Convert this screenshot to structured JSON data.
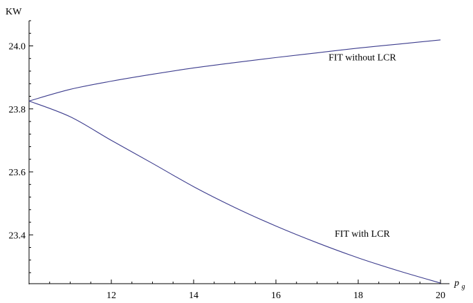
{
  "chart_data": {
    "type": "line",
    "title": "",
    "xlabel": "p",
    "xlabel_subscript": "g",
    "ylabel": "KW",
    "xlim": [
      10,
      20
    ],
    "ylim": [
      23.245,
      24.08
    ],
    "x_ticks": [
      12,
      14,
      16,
      18,
      20
    ],
    "x_tick_labels": [
      "12",
      "14",
      "16",
      "18",
      "20"
    ],
    "y_ticks": [
      23.4,
      23.6,
      23.8,
      24.0
    ],
    "y_tick_labels": [
      "23.4",
      "23.6",
      "23.8",
      "24.0"
    ],
    "grid": false,
    "legend": "none",
    "line_color": "#3a3a8c",
    "series": [
      {
        "x": [
          10,
          11,
          12,
          13,
          14,
          15,
          16,
          17,
          18,
          19,
          20
        ],
        "y": [
          23.825,
          23.862,
          23.888,
          23.91,
          23.93,
          23.947,
          23.963,
          23.978,
          23.993,
          24.006,
          24.019
        ]
      },
      {
        "x": [
          10,
          11,
          12,
          13,
          14,
          15,
          16,
          17,
          18,
          19,
          20
        ],
        "y": [
          23.825,
          23.775,
          23.7,
          23.627,
          23.553,
          23.487,
          23.428,
          23.375,
          23.327,
          23.285,
          23.247
        ]
      }
    ],
    "annotations": [
      {
        "text": "FIT without LCR",
        "x": 18.1,
        "y": 23.965
      },
      {
        "text": "FIT with LCR",
        "x": 18.1,
        "y": 23.405
      }
    ]
  }
}
